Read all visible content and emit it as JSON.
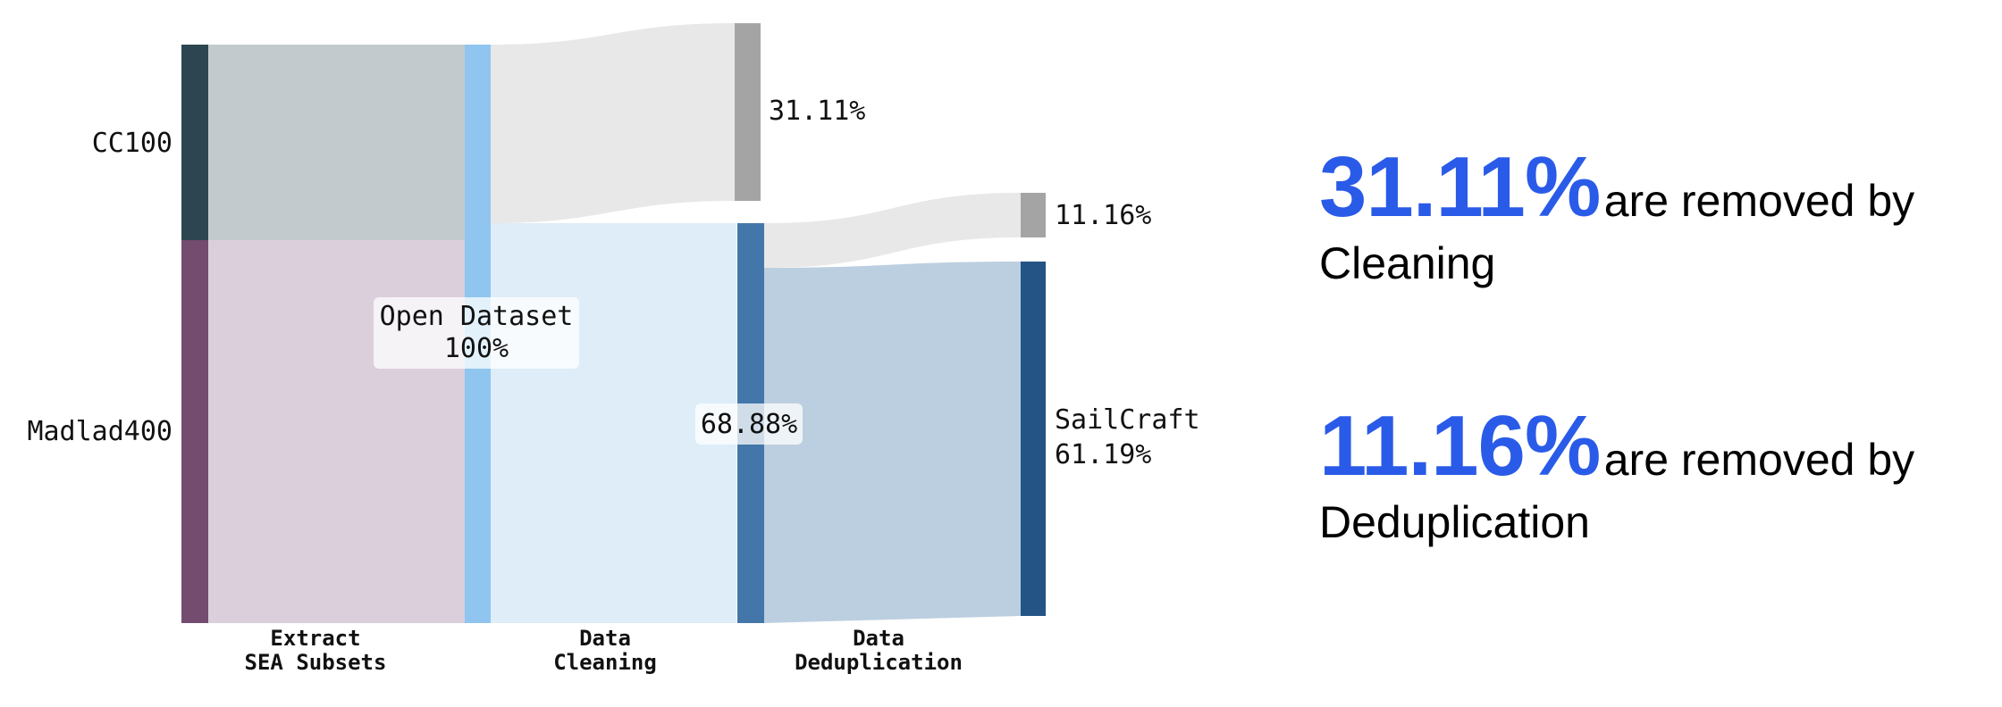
{
  "sankey": {
    "nodes": {
      "cc100": "CC100",
      "madlad400": "Madlad400",
      "open_dataset_name": "Open Dataset",
      "open_dataset_pct": "100%",
      "removed_cleaning": "31.11%",
      "after_cleaning": "68.88%",
      "removed_dedup": "11.16%",
      "sailcraft_name": "SailCraft",
      "sailcraft_pct": "61.19%"
    },
    "stages": {
      "extract_line1": "Extract",
      "extract_line2": "SEA Subsets",
      "cleaning_line1": "Data",
      "cleaning_line2": "Cleaning",
      "dedup_line1": "Data",
      "dedup_line2": "Deduplication"
    },
    "colors": {
      "cc100": "#2d4550",
      "madlad400": "#734c70",
      "cc100_flow": "#c3cacd",
      "madlad400_flow": "#dacfdb",
      "open_dataset": "#8fc5ef",
      "open_flow": "#deedf8",
      "removed": "#a4a4a4",
      "removed_flow": "#e8e8e8",
      "after_cleaning": "#4477a9",
      "after_flow": "#bccfe0",
      "sailcraft": "#235485"
    }
  },
  "callouts": {
    "cleaning": {
      "pct": "31.11%",
      "text": "are removed by",
      "line2": "Cleaning"
    },
    "dedup": {
      "pct": "11.16%",
      "text": "are removed by",
      "line2": "Deduplication"
    }
  }
}
